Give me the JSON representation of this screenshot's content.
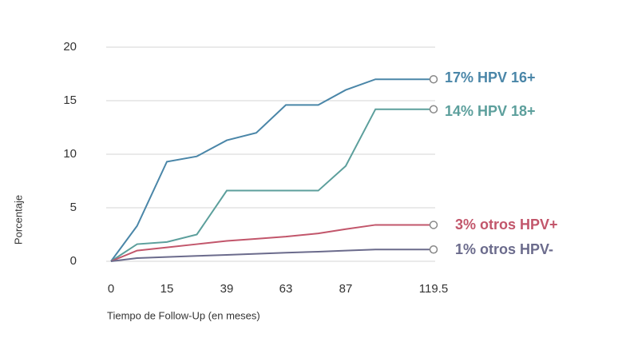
{
  "chart_data": {
    "type": "line",
    "x_label": "Tiempo de Follow-Up (en meses)",
    "y_label": "Porcentaje",
    "x": [
      0,
      7,
      15,
      27,
      39,
      51,
      63,
      76,
      87,
      98,
      119.5
    ],
    "xlim": [
      0,
      119.5
    ],
    "xticks": [
      0,
      15,
      39,
      63,
      87,
      119.5
    ],
    "ylim": [
      0,
      20
    ],
    "yticks": [
      0,
      5,
      10,
      15,
      20
    ],
    "grid": true,
    "series": [
      {
        "name": "17% HPV 16+",
        "color": "#4a86a8",
        "values": [
          0,
          3.3,
          9.3,
          9.8,
          11.3,
          12,
          14.6,
          14.6,
          16,
          17,
          17
        ]
      },
      {
        "name": "14% HPV 18+",
        "color": "#5c9f9c",
        "values": [
          0,
          1.6,
          1.8,
          2.5,
          6.6,
          6.6,
          6.6,
          6.6,
          8.9,
          14.2,
          14.2
        ]
      },
      {
        "name": "3% otros HPV+",
        "color": "#c2566b",
        "values": [
          0,
          1,
          1.3,
          1.6,
          1.9,
          2.1,
          2.3,
          2.6,
          3,
          3.4,
          3.4
        ]
      },
      {
        "name": "1% otros HPV-",
        "color": "#6b6b8c",
        "values": [
          0,
          0.3,
          0.4,
          0.5,
          0.6,
          0.7,
          0.8,
          0.9,
          1,
          1.1,
          1.1
        ]
      }
    ]
  }
}
